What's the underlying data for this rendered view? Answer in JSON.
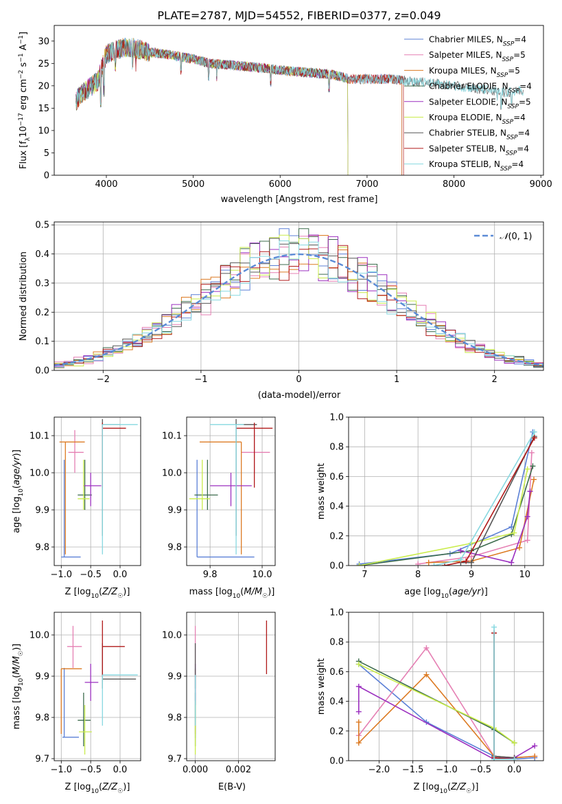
{
  "figure": {
    "title": "PLATE=2787, MJD=54552, FIBERID=0377, z=0.049"
  },
  "colors": {
    "Chabrier MILES": "#5a7fd6",
    "Salpeter MILES": "#e57fb3",
    "Kroupa MILES": "#dc7a22",
    "Chabrier ELODIE": "#3c6b4c",
    "Salpeter ELODIE": "#9b2fbf",
    "Kroupa ELODIE": "#c9ec4a",
    "Chabrier STELIB": "#555555",
    "Salpeter STELIB": "#b01818",
    "Kroupa STELIB": "#86d8e0",
    "gaussian": "#5b8bd6"
  },
  "chart_data": [
    {
      "id": "spectrum",
      "type": "line",
      "xlabel": "wavelength [Angstrom, rest frame]",
      "ylabel": "Flux [f_λ 10^-17 erg cm^-2 s^-1 A^-1]",
      "xlim": [
        3400,
        9030
      ],
      "ylim": [
        0,
        33.5
      ],
      "xticks": [
        4000,
        5000,
        6000,
        7000,
        8000,
        9000
      ],
      "yticks": [
        0,
        5,
        10,
        15,
        20,
        25,
        30
      ],
      "grid": false,
      "legend_position": "right",
      "continuum": {
        "x": [
          3650,
          3700,
          3800,
          3900,
          3950,
          4000,
          4100,
          4200,
          4300,
          4400,
          4500,
          4700,
          5000,
          5200,
          5500,
          5800,
          6000,
          6300,
          6600,
          6800,
          7000,
          7300,
          7500,
          7800,
          8000,
          8200,
          8400,
          8600,
          8800
        ],
        "y": [
          16.5,
          18,
          19.5,
          21,
          24,
          27,
          28,
          28.5,
          28.5,
          28,
          27.5,
          27,
          26,
          25,
          24.5,
          24,
          23.5,
          23,
          22.5,
          21.5,
          21.5,
          21.5,
          21,
          20.5,
          20,
          19.5,
          19,
          18.5,
          19
        ]
      },
      "series": [
        {
          "name": "Chabrier MILES",
          "nssp": "4",
          "end_x": 7400
        },
        {
          "name": "Salpeter MILES",
          "nssp": "5",
          "end_x": 7400
        },
        {
          "name": "Kroupa MILES",
          "nssp": "5",
          "end_x": 7400
        },
        {
          "name": "Chabrier ELODIE",
          "nssp": "4",
          "end_x": 6780
        },
        {
          "name": "Salpeter ELODIE",
          "nssp": "5",
          "end_x": 6780
        },
        {
          "name": "Kroupa ELODIE",
          "nssp": "4",
          "end_x": 6780
        },
        {
          "name": "Chabrier STELIB",
          "nssp": "4",
          "end_x": 8800
        },
        {
          "name": "Salpeter STELIB",
          "nssp": "4",
          "end_x": 7420
        },
        {
          "name": "Kroupa STELIB",
          "nssp": "4",
          "end_x": 8800
        }
      ]
    },
    {
      "id": "residuals",
      "type": "histogram",
      "xlabel": "(data-model)/error",
      "ylabel": "Normed distribution",
      "xlim": [
        -2.5,
        2.5
      ],
      "ylim": [
        0,
        0.51
      ],
      "xticks": [
        -2,
        -1,
        0,
        1,
        2
      ],
      "yticks": [
        0.0,
        0.1,
        0.2,
        0.3,
        0.4,
        0.5
      ],
      "grid": true,
      "legend": "N(0,1)",
      "legend_position": "top-right",
      "bins": {
        "start": -2.5,
        "width": 0.1,
        "count": 50
      },
      "reference_curve": "gaussian N(0,1)"
    },
    {
      "id": "age_vs_Z",
      "type": "errorbar",
      "xlabel": "Z [log10(Z/Z☉)]",
      "ylabel": "age [log10(age/yr)]",
      "xlim": [
        -1.12,
        0.35
      ],
      "ylim": [
        9.75,
        10.15
      ],
      "xticks": [
        -1.0,
        -0.5,
        0.0
      ],
      "yticks": [
        9.8,
        9.9,
        10.0,
        10.1
      ],
      "grid": true,
      "points": [
        {
          "series": "Chabrier MILES",
          "x": -0.95,
          "xlo": -1.0,
          "xhi": -0.67,
          "y": 9.773,
          "ylo": 9.773,
          "yhi": 10.035
        },
        {
          "series": "Salpeter MILES",
          "x": -0.77,
          "xlo": -0.88,
          "xhi": -0.62,
          "y": 10.055,
          "ylo": 10.0,
          "yhi": 10.115
        },
        {
          "series": "Kroupa MILES",
          "x": -0.93,
          "xlo": -1.03,
          "xhi": -0.6,
          "y": 10.083,
          "ylo": 9.78,
          "yhi": 10.083
        },
        {
          "series": "Chabrier ELODIE",
          "x": -0.6,
          "xlo": -0.72,
          "xhi": -0.48,
          "y": 9.94,
          "ylo": 9.9,
          "yhi": 10.035
        },
        {
          "series": "Salpeter ELODIE",
          "x": -0.5,
          "xlo": -0.62,
          "xhi": -0.32,
          "y": 9.965,
          "ylo": 9.91,
          "yhi": 10.0
        },
        {
          "series": "Kroupa ELODIE",
          "x": -0.62,
          "xlo": -0.72,
          "xhi": -0.52,
          "y": 9.93,
          "ylo": 9.9,
          "yhi": 10.035
        },
        {
          "series": "Chabrier STELIB",
          "x": -0.3,
          "xlo": -0.3,
          "xhi": 0.0,
          "y": 10.13,
          "ylo": 9.83,
          "yhi": 10.145
        },
        {
          "series": "Salpeter STELIB",
          "x": -0.3,
          "xlo": -0.3,
          "xhi": 0.1,
          "y": 10.12,
          "ylo": 9.96,
          "yhi": 10.135
        },
        {
          "series": "Kroupa STELIB",
          "x": -0.3,
          "xlo": -0.3,
          "xhi": 0.3,
          "y": 10.13,
          "ylo": 9.78,
          "yhi": 10.13
        }
      ]
    },
    {
      "id": "age_vs_mass",
      "type": "errorbar",
      "xlabel": "mass [log10(M/M☉)]",
      "ylabel": "",
      "xlim": [
        9.71,
        10.05
      ],
      "ylim": [
        9.75,
        10.15
      ],
      "xticks": [
        9.8,
        10.0
      ],
      "yticks": [
        9.8,
        9.9,
        10.0,
        10.1
      ],
      "grid": true,
      "points": [
        {
          "series": "Chabrier MILES",
          "x": 9.75,
          "xlo": 9.75,
          "xhi": 9.97,
          "y": 9.773,
          "ylo": 9.773,
          "yhi": 10.035
        },
        {
          "series": "Salpeter MILES",
          "x": 9.97,
          "xlo": 9.92,
          "xhi": 10.03,
          "y": 10.055,
          "ylo": 10.0,
          "yhi": 10.115
        },
        {
          "series": "Kroupa MILES",
          "x": 9.92,
          "xlo": 9.76,
          "xhi": 9.92,
          "y": 10.083,
          "ylo": 9.78,
          "yhi": 10.083
        },
        {
          "series": "Chabrier ELODIE",
          "x": 9.79,
          "xlo": 9.74,
          "xhi": 9.83,
          "y": 9.94,
          "ylo": 9.9,
          "yhi": 10.035
        },
        {
          "series": "Salpeter ELODIE",
          "x": 9.88,
          "xlo": 9.8,
          "xhi": 9.96,
          "y": 9.965,
          "ylo": 9.91,
          "yhi": 10.0
        },
        {
          "series": "Kroupa ELODIE",
          "x": 9.77,
          "xlo": 9.72,
          "xhi": 9.8,
          "y": 9.93,
          "ylo": 9.9,
          "yhi": 10.035
        },
        {
          "series": "Chabrier STELIB",
          "x": 9.9,
          "xlo": 9.9,
          "xhi": 9.98,
          "y": 10.13,
          "ylo": 9.83,
          "yhi": 10.145
        },
        {
          "series": "Salpeter STELIB",
          "x": 9.97,
          "xlo": 9.9,
          "xhi": 10.04,
          "y": 10.12,
          "ylo": 9.96,
          "yhi": 10.135
        },
        {
          "series": "Kroupa STELIB",
          "x": 9.9,
          "xlo": 9.8,
          "xhi": 9.93,
          "y": 10.13,
          "ylo": 9.78,
          "yhi": 10.13
        }
      ]
    },
    {
      "id": "weight_vs_age",
      "type": "line",
      "xlabel": "age [log10(age/yr)]",
      "ylabel": "mass weight",
      "xlim": [
        6.7,
        10.35
      ],
      "ylim": [
        0,
        1.0
      ],
      "xticks": [
        7,
        8,
        9,
        10
      ],
      "yticks": [
        0.0,
        0.2,
        0.4,
        0.6,
        0.8,
        1.0
      ],
      "grid": true,
      "series": [
        {
          "name": "Chabrier MILES",
          "x": [
            6.9,
            8.6,
            9.75,
            10.15
          ],
          "y": [
            0.01,
            0.08,
            0.26,
            0.9
          ]
        },
        {
          "name": "Salpeter MILES",
          "x": [
            8.0,
            9.0,
            10.05,
            10.13
          ],
          "y": [
            0.01,
            0.06,
            0.17,
            0.76
          ]
        },
        {
          "name": "Kroupa MILES",
          "x": [
            8.2,
            9.0,
            9.9,
            10.17
          ],
          "y": [
            0.02,
            0.03,
            0.12,
            0.58
          ]
        },
        {
          "name": "Chabrier ELODIE",
          "x": [
            6.9,
            9.0,
            9.75,
            10.15
          ],
          "y": [
            0.0,
            0.1,
            0.21,
            0.67
          ]
        },
        {
          "name": "Salpeter ELODIE",
          "x": [
            8.8,
            9.75,
            10.05,
            10.1
          ],
          "y": [
            0.1,
            0.02,
            0.33,
            0.5
          ]
        },
        {
          "name": "Kroupa ELODIE",
          "x": [
            6.9,
            9.0,
            9.8,
            10.05
          ],
          "y": [
            0.0,
            0.15,
            0.22,
            0.65
          ]
        },
        {
          "name": "Chabrier STELIB",
          "x": [
            8.8,
            9.0,
            10.18
          ],
          "y": [
            0.02,
            0.02,
            0.87
          ]
        },
        {
          "name": "Salpeter STELIB",
          "x": [
            8.5,
            8.9,
            10.18
          ],
          "y": [
            0.0,
            0.03,
            0.86
          ]
        },
        {
          "name": "Kroupa STELIB",
          "x": [
            8.3,
            8.8,
            10.18
          ],
          "y": [
            0.0,
            0.04,
            0.9
          ]
        }
      ]
    },
    {
      "id": "mass_vs_Z",
      "type": "errorbar",
      "xlabel": "Z [log10(Z/Z☉)]",
      "ylabel": "mass [log10(M/M☉)]",
      "xlim": [
        -1.12,
        0.35
      ],
      "ylim": [
        9.695,
        10.055
      ],
      "xticks": [
        -1.0,
        -0.5,
        0.0
      ],
      "yticks": [
        9.7,
        9.8,
        9.9,
        10.0
      ],
      "grid": true,
      "points": [
        {
          "series": "Chabrier MILES",
          "x": -0.95,
          "xlo": -0.98,
          "xhi": -0.7,
          "y": 9.752,
          "ylo": 9.752,
          "yhi": 9.92
        },
        {
          "series": "Salpeter MILES",
          "x": -0.8,
          "xlo": -0.9,
          "xhi": -0.65,
          "y": 9.972,
          "ylo": 9.92,
          "yhi": 10.022
        },
        {
          "series": "Kroupa MILES",
          "x": -1.0,
          "xlo": -1.0,
          "xhi": -0.65,
          "y": 9.918,
          "ylo": 9.76,
          "yhi": 9.918
        },
        {
          "series": "Chabrier ELODIE",
          "x": -0.62,
          "xlo": -0.72,
          "xhi": -0.5,
          "y": 9.793,
          "ylo": 9.73,
          "yhi": 9.86
        },
        {
          "series": "Salpeter ELODIE",
          "x": -0.5,
          "xlo": -0.6,
          "xhi": -0.37,
          "y": 9.885,
          "ylo": 9.84,
          "yhi": 9.93
        },
        {
          "series": "Kroupa ELODIE",
          "x": -0.6,
          "xlo": -0.7,
          "xhi": -0.48,
          "y": 9.765,
          "ylo": 9.71,
          "yhi": 9.83
        },
        {
          "series": "Chabrier STELIB",
          "x": -0.3,
          "xlo": -0.3,
          "xhi": 0.27,
          "y": 9.893,
          "ylo": 9.87,
          "yhi": 9.98
        },
        {
          "series": "Salpeter STELIB",
          "x": -0.3,
          "xlo": -0.3,
          "xhi": 0.08,
          "y": 9.972,
          "ylo": 9.9,
          "yhi": 10.035
        },
        {
          "series": "Kroupa STELIB",
          "x": -0.3,
          "xlo": -0.3,
          "xhi": 0.3,
          "y": 9.903,
          "ylo": 9.78,
          "yhi": 9.903
        }
      ]
    },
    {
      "id": "mass_vs_ebv",
      "type": "errorbar",
      "xlabel": "E(B-V)",
      "ylabel": "",
      "xlim": [
        -0.0004,
        0.0037
      ],
      "ylim": [
        9.695,
        10.055
      ],
      "xticks": [
        0.0,
        0.002
      ],
      "xticklabels": [
        "0.000",
        "0.002"
      ],
      "yticks": [
        9.7,
        9.8,
        9.9,
        10.0
      ],
      "grid": true,
      "points": [
        {
          "series": "Chabrier MILES",
          "x": 0.0,
          "xlo": 0.0,
          "xhi": 0.0,
          "y": 9.752,
          "ylo": 9.75,
          "yhi": 9.92
        },
        {
          "series": "Salpeter MILES",
          "x": 0.0,
          "xlo": 0.0,
          "xhi": 0.0,
          "y": 9.972,
          "ylo": 9.92,
          "yhi": 10.022
        },
        {
          "series": "Kroupa MILES",
          "x": 0.0,
          "xlo": 0.0,
          "xhi": 0.0,
          "y": 9.918,
          "ylo": 9.76,
          "yhi": 9.918
        },
        {
          "series": "Chabrier ELODIE",
          "x": 0.0,
          "xlo": 0.0,
          "xhi": 0.0,
          "y": 9.793,
          "ylo": 9.73,
          "yhi": 9.86
        },
        {
          "series": "Salpeter ELODIE",
          "x": 0.0,
          "xlo": 0.0,
          "xhi": 0.0,
          "y": 9.885,
          "ylo": 9.84,
          "yhi": 9.93
        },
        {
          "series": "Kroupa ELODIE",
          "x": 0.0,
          "xlo": 0.0,
          "xhi": 0.0,
          "y": 9.765,
          "ylo": 9.71,
          "yhi": 9.83
        },
        {
          "series": "Chabrier STELIB",
          "x": 0.0,
          "xlo": 0.0,
          "xhi": 0.0,
          "y": 9.893,
          "ylo": 9.87,
          "yhi": 9.98
        },
        {
          "series": "Salpeter STELIB",
          "x": 0.0033,
          "xlo": 0.0033,
          "xhi": 0.0033,
          "y": 9.972,
          "ylo": 9.905,
          "yhi": 10.035
        },
        {
          "series": "Kroupa STELIB",
          "x": 0.0,
          "xlo": 0.0,
          "xhi": 0.0,
          "y": 9.903,
          "ylo": 9.78,
          "yhi": 9.903
        }
      ]
    },
    {
      "id": "weight_vs_Z",
      "type": "line",
      "xlabel": "Z [log10(Z/Z☉)]",
      "ylabel": "mass weight",
      "xlim": [
        -2.45,
        0.43
      ],
      "ylim": [
        0,
        1.0
      ],
      "xticks": [
        -2.0,
        -1.5,
        -1.0,
        -0.5,
        0.0
      ],
      "yticks": [
        0.0,
        0.2,
        0.4,
        0.6,
        0.8,
        1.0
      ],
      "grid": true,
      "series": [
        {
          "name": "Chabrier MILES",
          "x": [
            -2.3,
            -1.3,
            -0.3,
            0.0,
            0.3
          ],
          "y": [
            0.65,
            0.26,
            0.03,
            0.01,
            0.02
          ]
        },
        {
          "name": "Salpeter MILES",
          "x": [
            -2.3,
            -1.3,
            -0.3,
            0.0,
            0.3
          ],
          "y": [
            0.17,
            0.76,
            0.03,
            0.02,
            0.03
          ]
        },
        {
          "name": "Kroupa MILES",
          "x": [
            -2.3,
            -2.3,
            -1.3,
            -0.3,
            0.0,
            0.3
          ],
          "y": [
            0.26,
            0.12,
            0.58,
            0.03,
            0.02,
            0.03
          ]
        },
        {
          "name": "Chabrier ELODIE",
          "x": [
            -2.3,
            -0.3,
            0.0
          ],
          "y": [
            0.67,
            0.21,
            0.12
          ]
        },
        {
          "name": "Salpeter ELODIE",
          "x": [
            -2.3,
            -2.3,
            -0.3,
            0.0,
            0.3
          ],
          "y": [
            0.33,
            0.5,
            0.01,
            0.02,
            0.1
          ]
        },
        {
          "name": "Kroupa ELODIE",
          "x": [
            -2.3,
            -0.3,
            0.0
          ],
          "y": [
            0.65,
            0.22,
            0.12
          ]
        },
        {
          "name": "Chabrier STELIB",
          "x": [
            -0.3,
            -0.3,
            0.0
          ],
          "y": [
            0.86,
            0.03,
            0.02
          ]
        },
        {
          "name": "Salpeter STELIB",
          "x": [
            -0.3,
            -0.3,
            0.0
          ],
          "y": [
            0.86,
            0.02,
            0.01
          ]
        },
        {
          "name": "Kroupa STELIB",
          "x": [
            -0.3,
            -0.3,
            0.0
          ],
          "y": [
            0.9,
            0.01,
            0.01
          ]
        }
      ]
    }
  ]
}
